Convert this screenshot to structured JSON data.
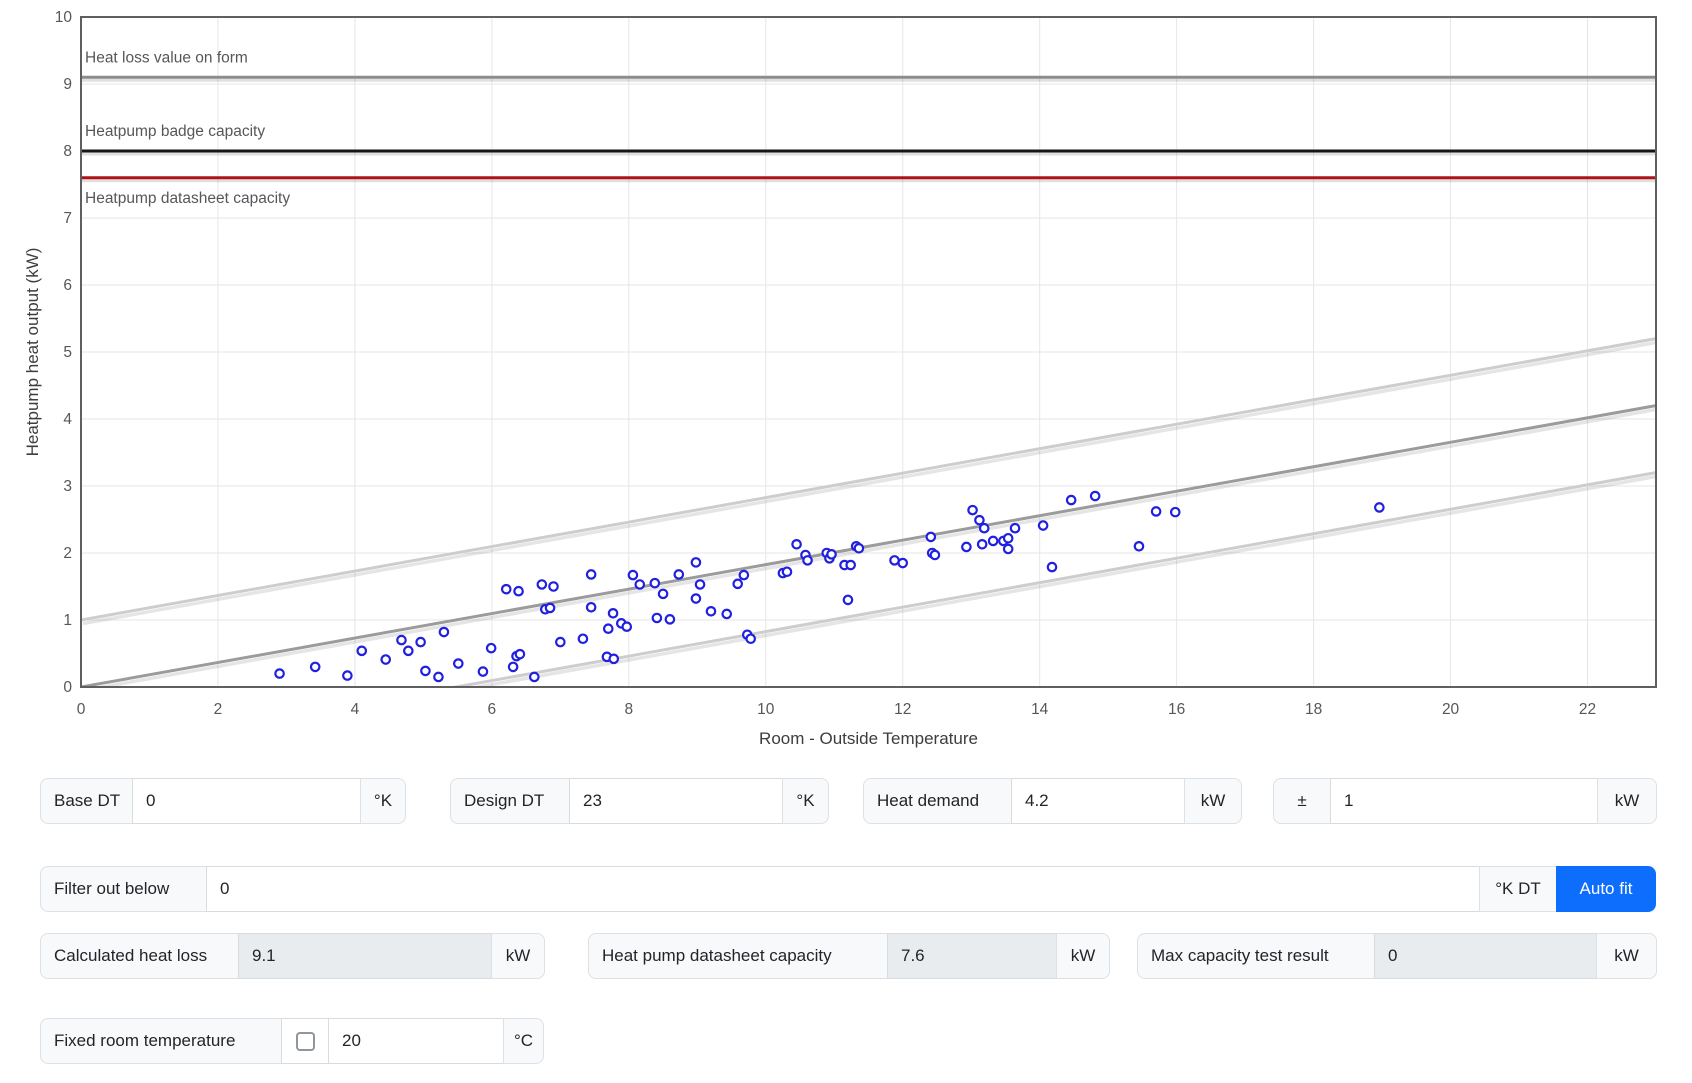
{
  "chart_data": {
    "type": "scatter",
    "title": "",
    "xlabel": "Room - Outside Temperature",
    "ylabel": "Heatpump heat output (kW)",
    "xlim": [
      0,
      23
    ],
    "ylim": [
      0,
      10
    ],
    "x_ticks": [
      0,
      2,
      4,
      6,
      8,
      10,
      12,
      14,
      16,
      18,
      20,
      22
    ],
    "y_ticks": [
      0,
      1,
      2,
      3,
      4,
      5,
      6,
      7,
      8,
      9,
      10
    ],
    "grid_on": true,
    "grid_color": "#e6e6e6",
    "border_color": "#5f5f5f",
    "tick_color": "#55575a",
    "label_color": "#55575a",
    "points_color": "#2020df",
    "annotations": [
      {
        "label": "Heat loss value on form",
        "value": 9.1,
        "color": "#8c8c8c",
        "label_position": "above"
      },
      {
        "label": "Heatpump badge capacity",
        "value": 8.0,
        "color": "#161616",
        "label_position": "above"
      },
      {
        "label": "Heatpump datasheet capacity",
        "value": 7.6,
        "color": "#b01218",
        "label_position": "below"
      }
    ],
    "fit_lines": [
      {
        "name": "fit-line-upper",
        "x1": 0,
        "y1": 1.0,
        "x2": 23,
        "y2": 5.2,
        "color": "#cdcdcd"
      },
      {
        "name": "fit-line-center",
        "x1": 0,
        "y1": 0.0,
        "x2": 23,
        "y2": 4.2,
        "color": "#9b9b9b"
      },
      {
        "name": "fit-line-lower",
        "x1": 0,
        "y1": -1.0,
        "x2": 23,
        "y2": 3.2,
        "color": "#cdcdcd"
      }
    ],
    "points": [
      [
        2.9,
        0.2
      ],
      [
        3.42,
        0.3
      ],
      [
        3.89,
        0.17
      ],
      [
        4.1,
        0.54
      ],
      [
        4.45,
        0.41
      ],
      [
        4.68,
        0.7
      ],
      [
        4.78,
        0.54
      ],
      [
        4.96,
        0.67
      ],
      [
        5.03,
        0.24
      ],
      [
        5.22,
        0.15
      ],
      [
        5.3,
        0.82
      ],
      [
        5.51,
        0.35
      ],
      [
        5.87,
        0.23
      ],
      [
        5.99,
        0.58
      ],
      [
        6.21,
        1.46
      ],
      [
        6.31,
        0.3
      ],
      [
        6.36,
        0.46
      ],
      [
        6.41,
        0.49
      ],
      [
        6.39,
        1.43
      ],
      [
        6.62,
        0.15
      ],
      [
        6.73,
        1.53
      ],
      [
        6.9,
        1.5
      ],
      [
        6.78,
        1.16
      ],
      [
        6.85,
        1.18
      ],
      [
        7.0,
        0.67
      ],
      [
        7.33,
        0.72
      ],
      [
        7.45,
        1.68
      ],
      [
        7.45,
        1.19
      ],
      [
        7.68,
        0.45
      ],
      [
        7.78,
        0.42
      ],
      [
        7.7,
        0.87
      ],
      [
        7.77,
        1.1
      ],
      [
        7.89,
        0.95
      ],
      [
        7.97,
        0.9
      ],
      [
        8.06,
        1.67
      ],
      [
        8.16,
        1.53
      ],
      [
        8.38,
        1.55
      ],
      [
        8.5,
        1.39
      ],
      [
        8.41,
        1.03
      ],
      [
        8.6,
        1.01
      ],
      [
        8.73,
        1.68
      ],
      [
        8.98,
        1.86
      ],
      [
        9.04,
        1.53
      ],
      [
        8.98,
        1.32
      ],
      [
        9.2,
        1.13
      ],
      [
        9.43,
        1.09
      ],
      [
        9.59,
        1.54
      ],
      [
        9.68,
        1.67
      ],
      [
        9.73,
        0.78
      ],
      [
        9.78,
        0.72
      ],
      [
        10.25,
        1.7
      ],
      [
        10.31,
        1.72
      ],
      [
        10.45,
        2.13
      ],
      [
        10.58,
        1.97
      ],
      [
        10.61,
        1.89
      ],
      [
        10.89,
        2.0
      ],
      [
        10.93,
        1.92
      ],
      [
        10.96,
        1.98
      ],
      [
        11.15,
        1.82
      ],
      [
        11.24,
        1.82
      ],
      [
        11.2,
        1.3
      ],
      [
        11.32,
        2.1
      ],
      [
        11.36,
        2.07
      ],
      [
        11.88,
        1.89
      ],
      [
        12.0,
        1.85
      ],
      [
        12.41,
        2.24
      ],
      [
        12.43,
        2.0
      ],
      [
        12.47,
        1.97
      ],
      [
        12.93,
        2.09
      ],
      [
        13.02,
        2.64
      ],
      [
        13.12,
        2.49
      ],
      [
        13.19,
        2.37
      ],
      [
        13.16,
        2.13
      ],
      [
        13.32,
        2.18
      ],
      [
        13.47,
        2.18
      ],
      [
        13.54,
        2.22
      ],
      [
        13.54,
        2.06
      ],
      [
        13.64,
        2.37
      ],
      [
        14.05,
        2.41
      ],
      [
        14.18,
        1.79
      ],
      [
        14.46,
        2.79
      ],
      [
        14.81,
        2.85
      ],
      [
        15.45,
        2.1
      ],
      [
        15.7,
        2.62
      ],
      [
        15.98,
        2.61
      ],
      [
        18.96,
        2.68
      ]
    ]
  },
  "form": {
    "row1": {
      "base_dt": {
        "label": "Base DT",
        "value": "0",
        "unit": "°K"
      },
      "design_dt": {
        "label": "Design DT",
        "value": "23",
        "unit": "°K"
      },
      "heat_demand": {
        "label": "Heat demand",
        "value": "4.2",
        "unit": "kW"
      },
      "tolerance": {
        "label": "±",
        "value": "1",
        "unit": "kW"
      }
    },
    "row2": {
      "filter": {
        "label": "Filter out below",
        "value": "0",
        "unit": "°K DT"
      },
      "autofit_button": "Auto fit"
    },
    "row3": {
      "calculated_heat_loss": {
        "label": "Calculated heat loss",
        "value": "9.1",
        "unit": "kW"
      },
      "datasheet_capacity": {
        "label": "Heat pump datasheet capacity",
        "value": "7.6",
        "unit": "kW"
      },
      "max_capacity": {
        "label": "Max capacity test result",
        "value": "0",
        "unit": "kW"
      }
    },
    "row4": {
      "fixed_room_temp": {
        "label": "Fixed room temperature",
        "value": "20",
        "unit": "°C",
        "checkbox_checked": false
      }
    }
  },
  "colors": {
    "accent_blue": "#0d6efd",
    "datasheet_red": "#b01218",
    "badge_black": "#161616",
    "heatloss_gray": "#8c8c8c",
    "point_blue": "#2020df"
  }
}
